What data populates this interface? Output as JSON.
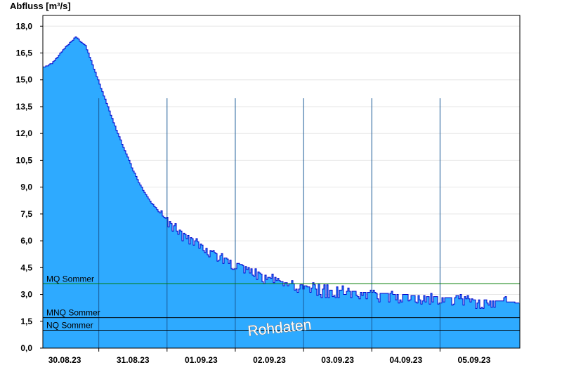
{
  "chart_data": {
    "type": "area",
    "ylabel": "Abfluss [m³/s]",
    "ylim": [
      0,
      18.6
    ],
    "y_ticks": [
      "0,0",
      "1,5",
      "3,0",
      "4,5",
      "6,0",
      "7,5",
      "9,0",
      "10,5",
      "12,0",
      "13,5",
      "15,0",
      "16,5",
      "18,0"
    ],
    "x_ticks": [
      "30.08.23",
      "31.08.23",
      "01.09.23",
      "02.09.23",
      "03.09.23",
      "04.09.23",
      "05.09.23"
    ],
    "x_range_days": [
      -0.32,
      6.67
    ],
    "grid": "horizontal",
    "fill_color": "#2eaaff",
    "line_color": "#0000cc",
    "series": [
      {
        "x": [
          -0.32,
          -0.2,
          0,
          0.1,
          0.15,
          0.3,
          0.5,
          0.75,
          0.9,
          1.0,
          1.1,
          1.25,
          1.4,
          1.55,
          1.75,
          1.95,
          2.1,
          2.3,
          2.5,
          2.7,
          2.9,
          3.1,
          3.3,
          3.5,
          3.7,
          3.9,
          4.1,
          4.3,
          4.5,
          4.7,
          4.9,
          5.1,
          5.3,
          5.5,
          5.7,
          5.9,
          6.1,
          6.3,
          6.5,
          6.67
        ],
        "y": [
          15.7,
          15.9,
          16.8,
          17.2,
          17.4,
          16.9,
          14.8,
          12.2,
          10.8,
          9.9,
          9.1,
          8.2,
          7.5,
          7.0,
          6.4,
          5.9,
          5.5,
          5.1,
          4.8,
          4.5,
          4.1,
          3.8,
          3.6,
          3.5,
          3.3,
          3.25,
          3.2,
          3.15,
          3.1,
          3.05,
          3.0,
          2.95,
          2.9,
          2.85,
          2.8,
          2.75,
          2.7,
          2.65,
          2.6,
          2.5
        ]
      }
    ],
    "reference_lines": [
      {
        "label": "MQ Sommer",
        "value": 3.6,
        "color": "#007a00"
      },
      {
        "label": "MNQ Sommer",
        "value": 1.7,
        "color": "#000000"
      },
      {
        "label": "NQ Sommer",
        "value": 1.0,
        "color": "#000000"
      }
    ],
    "annotation": "Rohdaten"
  }
}
